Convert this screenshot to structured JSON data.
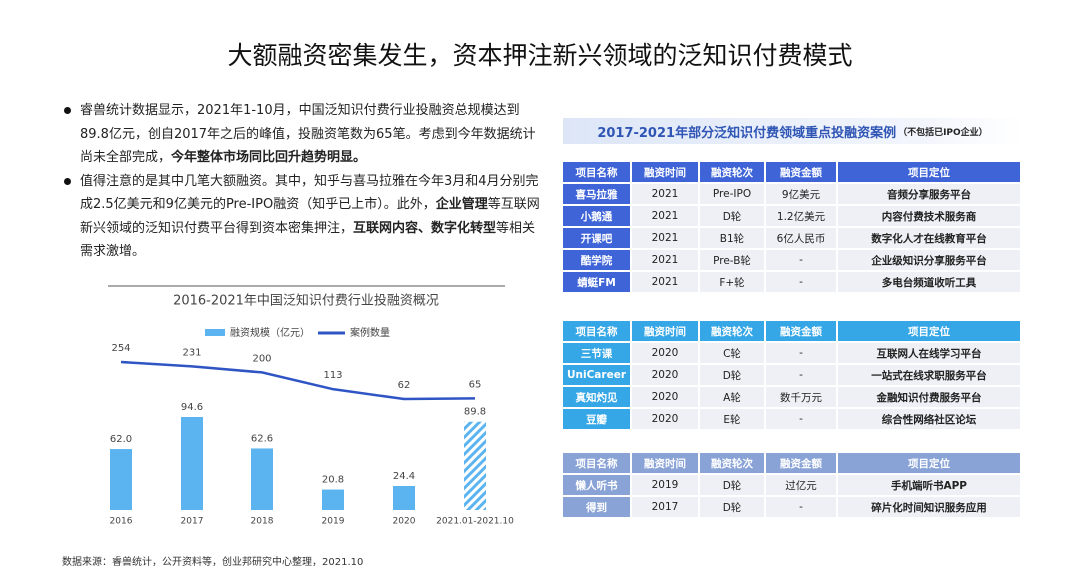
{
  "title": "大额融资密集发生，资本押注新兴领域的泛知识付费模式",
  "bullets": [
    {
      "segments": [
        {
          "text": "睿兽统计数据显示，2021年1-10月，中国泛知识付费行业投融资总规模达到89.8亿元，创自2017年之后的峰值，投融资笔数为65笔。考虑到今年数据统计尚未全部完成，",
          "bold": false
        },
        {
          "text": "今年整体市场同比回升趋势明显。",
          "bold": true
        }
      ]
    },
    {
      "segments": [
        {
          "text": "值得注意的是其中几笔大额融资。其中，知乎与喜马拉雅在今年3月和4月分别完成2.5亿美元和9亿美元的Pre-IPO融资（知乎已上市）。此外，",
          "bold": false
        },
        {
          "text": "企业管理",
          "bold": true
        },
        {
          "text": "等互联网新兴领域的泛知识付费平台得到资本密集押注，",
          "bold": false
        },
        {
          "text": "互联网内容、数字化转型",
          "bold": true
        },
        {
          "text": "等相关需求激增。",
          "bold": false
        }
      ]
    }
  ],
  "chart_data": {
    "type": "bar-line",
    "title": "2016-2021年中国泛知识付费行业投融资概况",
    "categories": [
      "2016",
      "2017",
      "2018",
      "2019",
      "2020",
      "2021.01-2021.10"
    ],
    "series": [
      {
        "name": "融资规模（亿元）",
        "type": "bar",
        "color": "#5bb4ef",
        "values": [
          62,
          94.6,
          62.6,
          20.8,
          24.4,
          89.8
        ],
        "value_labels": [
          "62.0",
          "94.6",
          "62.6",
          "20.8",
          "24.4",
          "89.8"
        ]
      },
      {
        "name": "案例数量",
        "type": "line",
        "color": "#2f55c4",
        "values": [
          254,
          231,
          200,
          113,
          62,
          65
        ]
      }
    ]
  },
  "tables_heading": {
    "title": "2017-2021年部分泛知识付费领域重点投融资案例",
    "note": "（不包括已IPO企业）"
  },
  "tables": [
    {
      "color": "#3f64d8",
      "header": [
        "项目名称",
        "融资时间",
        "融资轮次",
        "融资金额",
        "项目定位"
      ],
      "rows": [
        [
          "喜马拉雅",
          "2021",
          "Pre-IPO",
          "9亿美元",
          "音频分享服务平台"
        ],
        [
          "小鹅通",
          "2021",
          "D轮",
          "1.2亿美元",
          "内容付费技术服务商"
        ],
        [
          "开课吧",
          "2021",
          "B1轮",
          "6亿人民币",
          "数字化人才在线教育平台"
        ],
        [
          "酷学院",
          "2021",
          "Pre-B轮",
          "-",
          "企业级知识分享服务平台"
        ],
        [
          "蜻蜓FM",
          "2021",
          "F+轮",
          "-",
          "多电台频道收听工具"
        ]
      ]
    },
    {
      "color": "#35a6e6",
      "header": [
        "项目名称",
        "融资时间",
        "融资轮次",
        "融资金额",
        "项目定位"
      ],
      "rows": [
        [
          "三节课",
          "2020",
          "C轮",
          "-",
          "互联网人在线学习平台"
        ],
        [
          "UniCareer",
          "2020",
          "D轮",
          "-",
          "一站式在线求职服务平台"
        ],
        [
          "真知灼见",
          "2020",
          "A轮",
          "数千万元",
          "金融知识付费服务平台"
        ],
        [
          "豆瓣",
          "2020",
          "E轮",
          "-",
          "综合性网络社区论坛"
        ]
      ]
    },
    {
      "color": "#8aa3d6",
      "header": [
        "项目名称",
        "融资时间",
        "融资轮次",
        "融资金额",
        "项目定位"
      ],
      "rows": [
        [
          "懒人听书",
          "2019",
          "D轮",
          "过亿元",
          "手机端听书APP"
        ],
        [
          "得到",
          "2017",
          "D轮",
          "-",
          "碎片化时间知识服务应用"
        ]
      ]
    }
  ],
  "source": "数据来源：睿兽统计，公开资料等，创业邦研究中心整理，2021.10"
}
